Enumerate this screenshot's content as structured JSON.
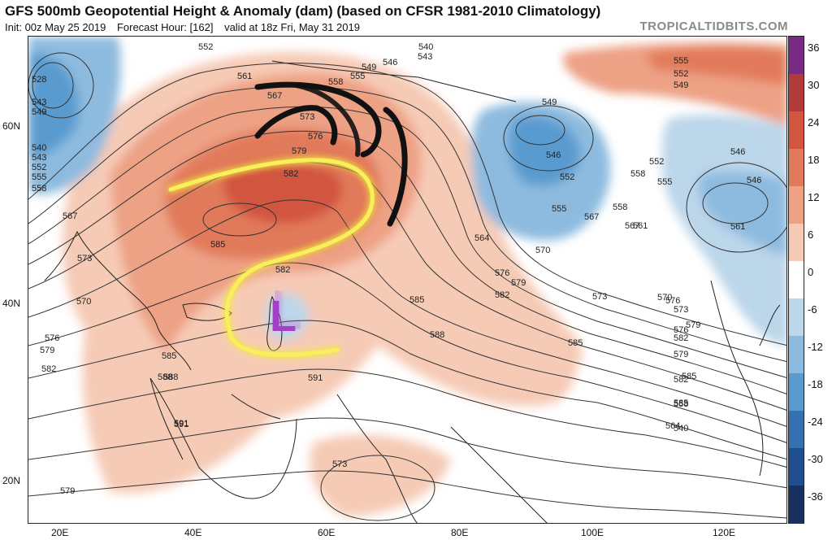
{
  "header": {
    "title": "GFS 500mb Geopotential Height & Anomaly (dam) (based on CFSR 1981-2010 Climatology)",
    "init": "Init: 00z May 25 2019",
    "forecast_hour": "Forecast Hour: [162]",
    "valid": "valid at 18z Fri, May 31 2019",
    "brand": "TROPICALTIDBITS.COM"
  },
  "axes": {
    "lat_labels": [
      "60N",
      "40N",
      "20N"
    ],
    "lon_labels": [
      "20E",
      "40E",
      "60E",
      "80E",
      "100E",
      "120E"
    ]
  },
  "colorbar": {
    "ticks": [
      "36",
      "30",
      "24",
      "18",
      "12",
      "6",
      "0",
      "-6",
      "-12",
      "-18",
      "-24",
      "-30",
      "-36"
    ],
    "colors": [
      "#7b2a84",
      "#b33a3a",
      "#d2553f",
      "#e17a5a",
      "#eda185",
      "#f6cbb6",
      "#ffffff",
      "#bcd6ea",
      "#8dbbdf",
      "#5a9bcf",
      "#3470b2",
      "#1f4d8f",
      "#17305f"
    ]
  },
  "contour_labels": [
    "552",
    "561",
    "567",
    "573",
    "576",
    "558",
    "555",
    "549",
    "546",
    "543",
    "540",
    "579",
    "582",
    "585",
    "570",
    "588",
    "591",
    "564",
    "549",
    "546",
    "552",
    "558",
    "555",
    "561",
    "528",
    "540",
    "543",
    "552",
    "555",
    "558",
    "567",
    "573",
    "576",
    "579",
    "582",
    "585",
    "588",
    "591",
    "579",
    "582",
    "585",
    "588",
    "591",
    "573",
    "576",
    "579",
    "582",
    "585",
    "564",
    "567",
    "570",
    "573",
    "576",
    "579",
    "582",
    "585",
    "558",
    "555",
    "552",
    "549",
    "546",
    "546",
    "561",
    "567",
    "570",
    "573",
    "576",
    "579",
    "582",
    "585",
    "540",
    "543",
    "549",
    "552",
    "555",
    "558"
  ],
  "annotations": {
    "low_letter": "L"
  }
}
